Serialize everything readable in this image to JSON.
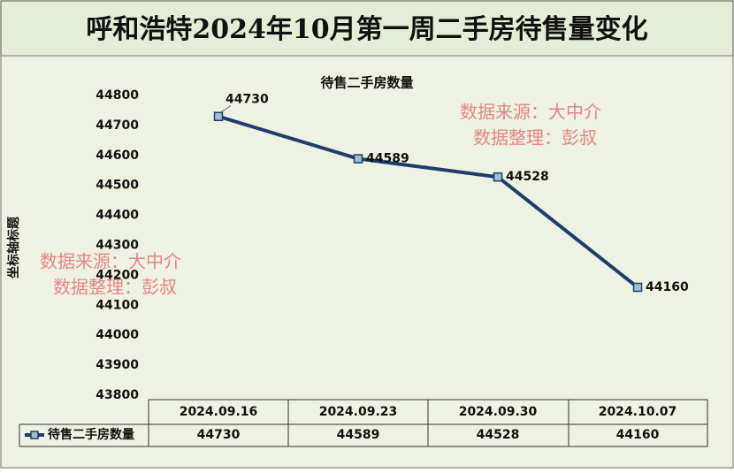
{
  "chart_data": {
    "type": "line",
    "title": "呼和浩特2024年10月第一周二手房待售量变化",
    "plot_title": "待售二手房数量",
    "y_label": "坐标轴标题",
    "categories": [
      "2024.09.16",
      "2024.09.23",
      "2024.09.30",
      "2024.10.07"
    ],
    "series": [
      {
        "name": "待售二手房数量",
        "color": "#1f3d6b",
        "values": [
          44730,
          44589,
          44528,
          44160
        ]
      }
    ],
    "ylim": [
      43800,
      44800
    ],
    "yticks": [
      43800,
      43900,
      44000,
      44100,
      44200,
      44300,
      44400,
      44500,
      44600,
      44700,
      44800
    ],
    "annotations": [
      "数据来源：大中介",
      "数据整理：彭叔",
      "数据来源：大中介",
      "数据整理：彭叔"
    ]
  }
}
